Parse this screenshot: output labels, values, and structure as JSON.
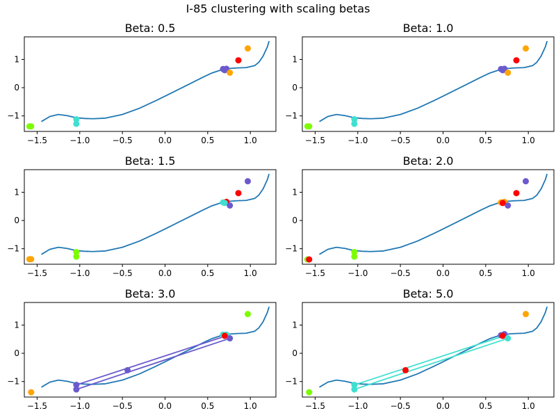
{
  "figure": {
    "title": "I-85 clustering with scaling betas"
  },
  "colors": {
    "curve": "#1f77b4",
    "red": "#ff0000",
    "orange": "#ffa500",
    "green": "#7cfc00",
    "turquoise": "#40e0d0",
    "purple": "#6a5acd"
  },
  "chart_data": [
    {
      "type": "scatter",
      "title": "Beta: 0.5",
      "xlim": [
        -1.65,
        1.3
      ],
      "ylim": [
        -1.55,
        1.8
      ],
      "xticks": [
        "-1.5",
        "-1.0",
        "-0.5",
        "0.0",
        "0.5",
        "1.0"
      ],
      "yticks": [
        "-1",
        "0",
        "1"
      ],
      "points": [
        {
          "x": -1.57,
          "y": -1.37,
          "color": "green"
        },
        {
          "x": -1.59,
          "y": -1.37,
          "color": "green"
        },
        {
          "x": -1.04,
          "y": -1.12,
          "color": "turquoise"
        },
        {
          "x": -1.04,
          "y": -1.28,
          "color": "turquoise"
        },
        {
          "x": 0.68,
          "y": 0.66,
          "color": "purple"
        },
        {
          "x": 0.7,
          "y": 0.62,
          "color": "purple"
        },
        {
          "x": 0.72,
          "y": 0.67,
          "color": "purple"
        },
        {
          "x": 0.76,
          "y": 0.53,
          "color": "orange"
        },
        {
          "x": 0.86,
          "y": 0.97,
          "color": "red"
        },
        {
          "x": 0.97,
          "y": 1.39,
          "color": "orange"
        }
      ],
      "segments": []
    },
    {
      "type": "scatter",
      "title": "Beta: 1.0",
      "xlim": [
        -1.65,
        1.3
      ],
      "ylim": [
        -1.55,
        1.8
      ],
      "xticks": [
        "-1.5",
        "-1.0",
        "-0.5",
        "0.0",
        "0.5",
        "1.0"
      ],
      "yticks": [
        "-1",
        "0",
        "1"
      ],
      "points": [
        {
          "x": -1.57,
          "y": -1.37,
          "color": "green"
        },
        {
          "x": -1.59,
          "y": -1.37,
          "color": "green"
        },
        {
          "x": -1.04,
          "y": -1.12,
          "color": "turquoise"
        },
        {
          "x": -1.04,
          "y": -1.28,
          "color": "turquoise"
        },
        {
          "x": 0.68,
          "y": 0.66,
          "color": "purple"
        },
        {
          "x": 0.7,
          "y": 0.62,
          "color": "purple"
        },
        {
          "x": 0.72,
          "y": 0.67,
          "color": "purple"
        },
        {
          "x": 0.76,
          "y": 0.53,
          "color": "orange"
        },
        {
          "x": 0.86,
          "y": 0.97,
          "color": "red"
        },
        {
          "x": 0.97,
          "y": 1.39,
          "color": "orange"
        }
      ],
      "segments": []
    },
    {
      "type": "scatter",
      "title": "Beta: 1.5",
      "xlim": [
        -1.65,
        1.3
      ],
      "ylim": [
        -1.55,
        1.8
      ],
      "xticks": [
        "-1.5",
        "-1.0",
        "-0.5",
        "0.0",
        "0.5",
        "1.0"
      ],
      "yticks": [
        "-1",
        "0",
        "1"
      ],
      "points": [
        {
          "x": -1.57,
          "y": -1.37,
          "color": "orange"
        },
        {
          "x": -1.59,
          "y": -1.37,
          "color": "orange"
        },
        {
          "x": -1.04,
          "y": -1.12,
          "color": "green"
        },
        {
          "x": -1.04,
          "y": -1.28,
          "color": "green"
        },
        {
          "x": 0.68,
          "y": 0.64,
          "color": "turquoise"
        },
        {
          "x": 0.72,
          "y": 0.66,
          "color": "red"
        },
        {
          "x": 0.7,
          "y": 0.62,
          "color": "turquoise"
        },
        {
          "x": 0.76,
          "y": 0.53,
          "color": "purple"
        },
        {
          "x": 0.86,
          "y": 0.97,
          "color": "red"
        },
        {
          "x": 0.97,
          "y": 1.39,
          "color": "purple"
        }
      ],
      "segments": []
    },
    {
      "type": "scatter",
      "title": "Beta: 2.0",
      "xlim": [
        -1.65,
        1.3
      ],
      "ylim": [
        -1.55,
        1.8
      ],
      "xticks": [
        "-1.5",
        "-1.0",
        "-0.5",
        "0.0",
        "0.5",
        "1.0"
      ],
      "yticks": [
        "-1",
        "0",
        "1"
      ],
      "points": [
        {
          "x": -1.59,
          "y": -1.38,
          "color": "green"
        },
        {
          "x": -1.57,
          "y": -1.38,
          "color": "red"
        },
        {
          "x": -1.04,
          "y": -1.12,
          "color": "green"
        },
        {
          "x": -1.04,
          "y": -1.28,
          "color": "green"
        },
        {
          "x": 0.68,
          "y": 0.64,
          "color": "orange"
        },
        {
          "x": 0.72,
          "y": 0.66,
          "color": "orange"
        },
        {
          "x": 0.7,
          "y": 0.62,
          "color": "red"
        },
        {
          "x": 0.76,
          "y": 0.53,
          "color": "purple"
        },
        {
          "x": 0.86,
          "y": 0.97,
          "color": "red"
        },
        {
          "x": 0.97,
          "y": 1.39,
          "color": "purple"
        }
      ],
      "segments": []
    },
    {
      "type": "scatter",
      "title": "Beta: 3.0",
      "xlim": [
        -1.65,
        1.3
      ],
      "ylim": [
        -1.55,
        1.8
      ],
      "xticks": [
        "-1.5",
        "-1.0",
        "-0.5",
        "0.0",
        "0.5",
        "1.0"
      ],
      "yticks": [
        "-1",
        "0",
        "1"
      ],
      "points": [
        {
          "x": -1.57,
          "y": -1.38,
          "color": "orange"
        },
        {
          "x": -1.04,
          "y": -1.12,
          "color": "purple"
        },
        {
          "x": -1.04,
          "y": -1.28,
          "color": "purple"
        },
        {
          "x": -0.44,
          "y": -0.6,
          "color": "purple"
        },
        {
          "x": 0.68,
          "y": 0.66,
          "color": "turquoise"
        },
        {
          "x": 0.72,
          "y": 0.66,
          "color": "turquoise"
        },
        {
          "x": 0.7,
          "y": 0.62,
          "color": "red"
        },
        {
          "x": 0.76,
          "y": 0.53,
          "color": "purple"
        },
        {
          "x": 0.97,
          "y": 1.39,
          "color": "green"
        }
      ],
      "segments": [
        {
          "x1": -1.04,
          "y1": -1.12,
          "x2": 0.72,
          "y2": 0.62,
          "color": "purple"
        },
        {
          "x1": -1.04,
          "y1": -1.28,
          "x2": 0.76,
          "y2": 0.53,
          "color": "purple"
        }
      ]
    },
    {
      "type": "scatter",
      "title": "Beta: 5.0",
      "xlim": [
        -1.65,
        1.3
      ],
      "ylim": [
        -1.55,
        1.8
      ],
      "xticks": [
        "-1.5",
        "-1.0",
        "-0.5",
        "0.0",
        "0.5",
        "1.0"
      ],
      "yticks": [
        "-1",
        "0",
        "1"
      ],
      "points": [
        {
          "x": -1.57,
          "y": -1.38,
          "color": "green"
        },
        {
          "x": -1.04,
          "y": -1.12,
          "color": "turquoise"
        },
        {
          "x": -1.04,
          "y": -1.28,
          "color": "turquoise"
        },
        {
          "x": -0.44,
          "y": -0.6,
          "color": "red"
        },
        {
          "x": 0.68,
          "y": 0.64,
          "color": "purple"
        },
        {
          "x": 0.72,
          "y": 0.68,
          "color": "purple"
        },
        {
          "x": 0.7,
          "y": 0.62,
          "color": "red"
        },
        {
          "x": 0.76,
          "y": 0.53,
          "color": "turquoise"
        },
        {
          "x": 0.97,
          "y": 1.39,
          "color": "orange"
        }
      ],
      "segments": [
        {
          "x1": -1.04,
          "y1": -1.12,
          "x2": 0.72,
          "y2": 0.62,
          "color": "turquoise"
        },
        {
          "x1": -1.04,
          "y1": -1.28,
          "x2": 0.76,
          "y2": 0.53,
          "color": "turquoise"
        }
      ]
    }
  ]
}
